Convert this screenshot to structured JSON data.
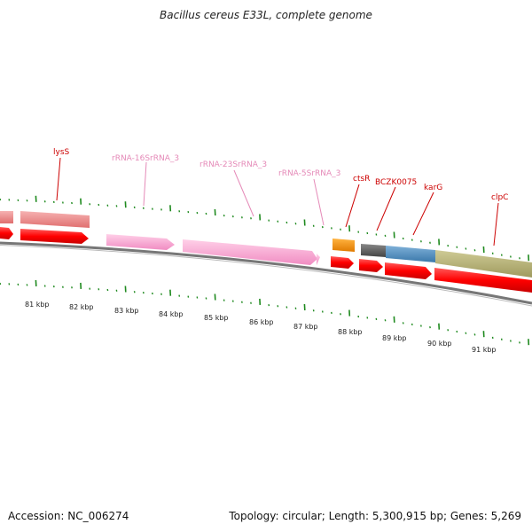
{
  "title": "Bacillus cereus E33L, complete genome",
  "footer": {
    "accession": "Accession: NC_006274",
    "summary": "Topology: circular; Length: 5,300,915 bp; Genes: 5,269"
  },
  "colors": {
    "backbone": "#777777",
    "cds": "#ff0000",
    "rrna": "#ff9fd0",
    "ticks": "#1f8a1f",
    "gene_label": "#cc0000",
    "rrna_label": "#e58ab8"
  },
  "scale_labels": [
    "81 kbp",
    "82 kbp",
    "83 kbp",
    "84 kbp",
    "85 kbp",
    "86 kbp",
    "87 kbp",
    "88 kbp",
    "89 kbp",
    "90 kbp",
    "91 kbp"
  ],
  "gene_labels": [
    "lysS",
    "rRNA-16SrRNA_3",
    "rRNA-23SrRNA_3",
    "rRNA-5SrRNA_3",
    "ctsR",
    "BCZK0075",
    "karG",
    "clpC"
  ]
}
